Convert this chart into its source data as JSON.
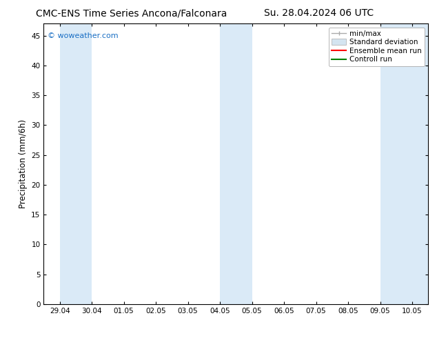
{
  "title_left": "CMC-ENS Time Series Ancona/Falconara",
  "title_right": "Su. 28.04.2024 06 UTC",
  "ylabel": "Precipitation (mm/6h)",
  "watermark": "© woweather.com",
  "watermark_color": "#1a6fc4",
  "ylim": [
    0,
    47
  ],
  "yticks": [
    0,
    5,
    10,
    15,
    20,
    25,
    30,
    35,
    40,
    45
  ],
  "x_labels": [
    "29.04",
    "30.04",
    "01.05",
    "02.05",
    "03.05",
    "04.05",
    "05.05",
    "06.05",
    "07.05",
    "08.05",
    "09.05",
    "10.05"
  ],
  "x_start_day": 0,
  "shade_regions": [
    {
      "xmin": 0.0,
      "xmax": 1.0
    },
    {
      "xmin": 5.0,
      "xmax": 6.0
    },
    {
      "xmin": 10.0,
      "xmax": 11.5
    }
  ],
  "shade_color": "#daeaf7",
  "background_color": "#ffffff",
  "plot_bg_color": "#ffffff",
  "legend_items": [
    {
      "label": "min/max",
      "color": "#aaaaaa",
      "type": "errorbar"
    },
    {
      "label": "Standard deviation",
      "color": "#d4e4f0",
      "type": "bar"
    },
    {
      "label": "Ensemble mean run",
      "color": "#ff0000",
      "type": "line"
    },
    {
      "label": "Controll run",
      "color": "#008000",
      "type": "line"
    }
  ],
  "title_fontsize": 10,
  "tick_fontsize": 7.5,
  "ylabel_fontsize": 8.5,
  "legend_fontsize": 7.5,
  "xlim_min": -0.5,
  "xlim_max": 11.5
}
